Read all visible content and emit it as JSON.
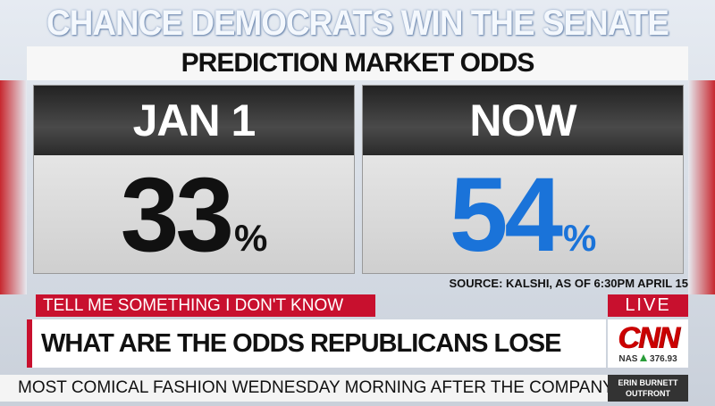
{
  "title": "CHANCE DEMOCRATS WIN THE SENATE",
  "subtitle": "PREDICTION MARKET ODDS",
  "panels": [
    {
      "label": "JAN 1",
      "value": "33",
      "unit": "%",
      "color": "#111111"
    },
    {
      "label": "NOW",
      "value": "54",
      "unit": "%",
      "color": "#1a73d9"
    }
  ],
  "source": "SOURCE: KALSHI, AS OF 6:30PM APRIL 15",
  "banner": {
    "tag": "TELL ME SOMETHING I DON'T KNOW",
    "live": "LIVE",
    "headline": "WHAT ARE THE ODDS REPUBLICANS LOSE THE SENATE?",
    "logo": "CNN",
    "ticker_symbol": "NAS",
    "ticker_value": "376.93"
  },
  "crawl": "MOST COMICAL FASHION WEDNESDAY MORNING AFTER THE COMPANY ANNOUNCED A",
  "show": [
    "ERIN BURNETT",
    "OUTFRONT"
  ]
}
